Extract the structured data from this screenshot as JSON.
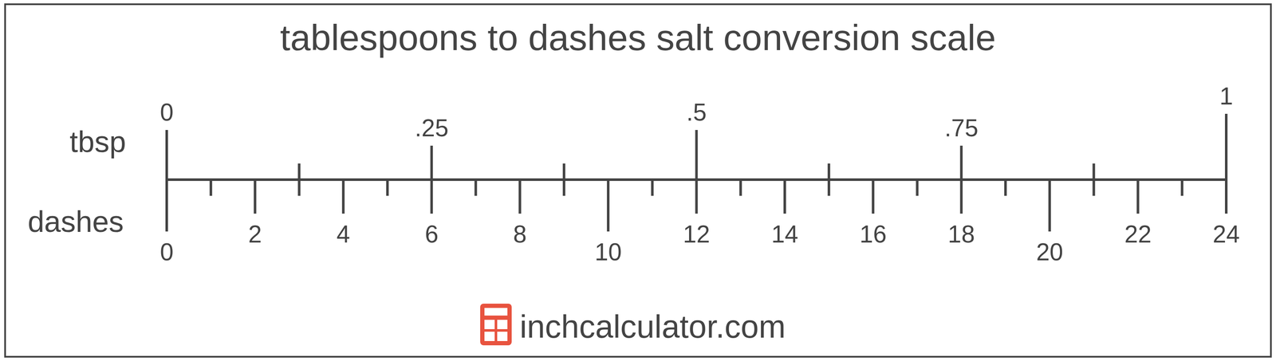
{
  "chart_data": {
    "type": "scale",
    "title": "tablespoons to dashes salt conversion scale",
    "axes": [
      {
        "label": "tbsp",
        "xlim": [
          0,
          1
        ],
        "xticks": [
          0,
          {
            "value": 0.25,
            "label": ".25"
          },
          {
            "value": 0.5,
            "label": ".5"
          },
          {
            "value": 0.75,
            "label": ".75"
          },
          1
        ],
        "minor_ticks": [
          0.125,
          0.375,
          0.625,
          0.875
        ]
      },
      {
        "label": "dashes",
        "xlim": [
          0,
          24
        ],
        "xticks": [
          0,
          2,
          4,
          6,
          8,
          10,
          12,
          14,
          16,
          18,
          20,
          22,
          24
        ],
        "minor_ticks": [
          1,
          3,
          5,
          7,
          9,
          11,
          13,
          15,
          17,
          19,
          21,
          23
        ]
      }
    ]
  },
  "footer": {
    "text": "inchcalculator.com"
  }
}
